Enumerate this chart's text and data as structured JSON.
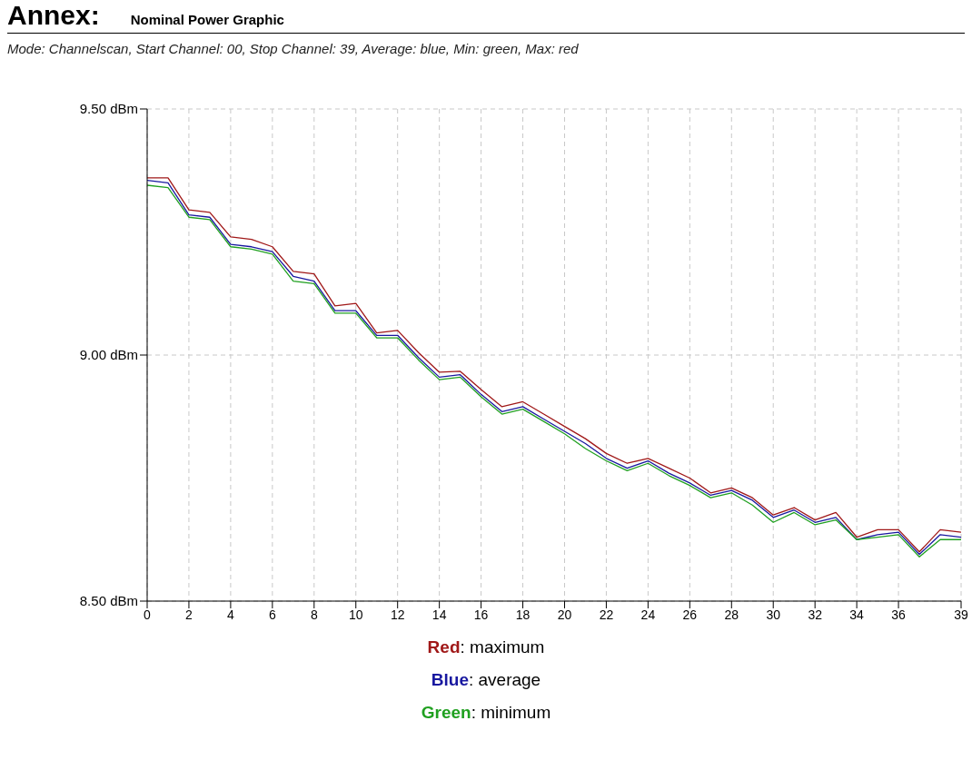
{
  "chart_data": {
    "type": "line",
    "title": "Annex:",
    "subtitle": "Nominal Power Graphic",
    "annotations": [
      "Mode: Channelscan, Start Channel: 00,  Stop Channel: 39, Average: blue, Min: green, Max: red"
    ],
    "x": [
      0,
      1,
      2,
      3,
      4,
      5,
      6,
      7,
      8,
      9,
      10,
      11,
      12,
      13,
      14,
      15,
      16,
      17,
      18,
      19,
      20,
      21,
      22,
      23,
      24,
      25,
      26,
      27,
      28,
      29,
      30,
      31,
      32,
      33,
      34,
      35,
      36,
      37,
      38,
      39
    ],
    "series": [
      {
        "name": "Red: maximum",
        "color": "#a01818",
        "values": [
          9.36,
          9.36,
          9.295,
          9.29,
          9.24,
          9.235,
          9.22,
          9.17,
          9.165,
          9.1,
          9.105,
          9.045,
          9.05,
          9.005,
          8.965,
          8.967,
          8.93,
          8.895,
          8.905,
          8.88,
          8.855,
          8.83,
          8.8,
          8.78,
          8.79,
          8.77,
          8.75,
          8.72,
          8.73,
          8.71,
          8.675,
          8.69,
          8.665,
          8.68,
          8.63,
          8.645,
          8.645,
          8.6,
          8.645,
          8.64
        ]
      },
      {
        "name": "Blue: average",
        "color": "#1818a0",
        "values": [
          9.355,
          9.35,
          9.285,
          9.28,
          9.225,
          9.22,
          9.21,
          9.16,
          9.15,
          9.09,
          9.09,
          9.04,
          9.04,
          8.995,
          8.955,
          8.96,
          8.92,
          8.885,
          8.895,
          8.87,
          8.845,
          8.82,
          8.79,
          8.77,
          8.785,
          8.76,
          8.74,
          8.715,
          8.725,
          8.705,
          8.67,
          8.685,
          8.66,
          8.67,
          8.625,
          8.635,
          8.64,
          8.595,
          8.635,
          8.63
        ]
      },
      {
        "name": "Green: minimum",
        "color": "#20a020",
        "values": [
          9.345,
          9.34,
          9.28,
          9.275,
          9.22,
          9.215,
          9.205,
          9.15,
          9.145,
          9.085,
          9.085,
          9.035,
          9.035,
          8.99,
          8.95,
          8.955,
          8.915,
          8.88,
          8.89,
          8.865,
          8.84,
          8.81,
          8.785,
          8.765,
          8.78,
          8.755,
          8.735,
          8.71,
          8.72,
          8.695,
          8.66,
          8.68,
          8.655,
          8.665,
          8.625,
          8.63,
          8.635,
          8.59,
          8.625,
          8.625
        ]
      }
    ],
    "xlim": [
      0,
      39
    ],
    "xticks": [
      0,
      2,
      4,
      6,
      8,
      10,
      12,
      14,
      16,
      18,
      20,
      22,
      24,
      26,
      28,
      30,
      32,
      34,
      36,
      39
    ],
    "ylim": [
      8.5,
      9.5
    ],
    "yticks": [
      {
        "value": 8.5,
        "label": "8.50 dBm"
      },
      {
        "value": 9.0,
        "label": "9.00 dBm"
      },
      {
        "value": 9.5,
        "label": "9.50 dBm"
      }
    ],
    "grid": true,
    "legend": "bottom",
    "marker": "none",
    "line_style": "solid"
  }
}
